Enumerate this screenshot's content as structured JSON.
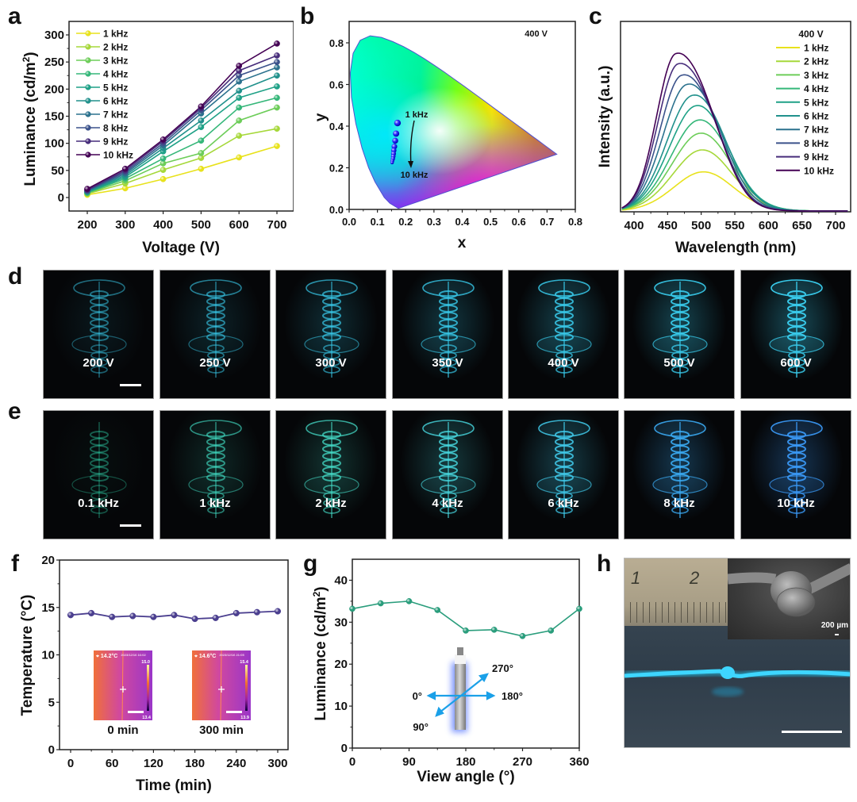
{
  "figure": {
    "panel_labels": [
      "a",
      "b",
      "c",
      "d",
      "e",
      "f",
      "g",
      "h"
    ]
  },
  "chart_data": [
    {
      "id": "a",
      "type": "line",
      "title": "",
      "xlabel": "Voltage (V)",
      "ylabel": "Luminance (cd/m²)",
      "x": [
        200,
        300,
        400,
        500,
        600,
        700
      ],
      "xticks": [
        "200",
        "300",
        "400",
        "500",
        "600",
        "700"
      ],
      "yticks": [
        "0",
        "50",
        "100",
        "150",
        "200",
        "250",
        "300"
      ],
      "xlim": [
        150,
        750
      ],
      "ylim": [
        -25,
        320
      ],
      "legend_position": "top-left",
      "series": [
        {
          "name": "1 kHz",
          "color": "#e8e21c",
          "values": [
            5,
            17,
            34,
            53,
            74,
            95
          ]
        },
        {
          "name": "2 kHz",
          "color": "#a6d83a",
          "values": [
            7,
            26,
            51,
            73,
            114,
            127
          ]
        },
        {
          "name": "3 kHz",
          "color": "#6dcd59",
          "values": [
            8,
            31,
            63,
            82,
            142,
            166
          ]
        },
        {
          "name": "4 kHz",
          "color": "#35b779",
          "values": [
            9,
            35,
            72,
            105,
            166,
            184
          ]
        },
        {
          "name": "5 kHz",
          "color": "#1fa187",
          "values": [
            10,
            38,
            85,
            130,
            184,
            205
          ]
        },
        {
          "name": "6 kHz",
          "color": "#21918c",
          "values": [
            11,
            41,
            91,
            142,
            197,
            225
          ]
        },
        {
          "name": "7 kHz",
          "color": "#2c728e",
          "values": [
            12,
            44,
            96,
            155,
            214,
            240
          ]
        },
        {
          "name": "8 kHz",
          "color": "#3b528b",
          "values": [
            13,
            47,
            100,
            161,
            225,
            250
          ]
        },
        {
          "name": "9 kHz",
          "color": "#472d7b",
          "values": [
            14,
            50,
            104,
            165,
            234,
            262
          ]
        },
        {
          "name": "10 kHz",
          "color": "#440154",
          "values": [
            16,
            53,
            107,
            168,
            243,
            284
          ]
        }
      ]
    },
    {
      "id": "b",
      "type": "scatter",
      "title": "",
      "annotation": "400 V",
      "xlabel": "x",
      "ylabel": "y",
      "xlim": [
        0.0,
        0.8
      ],
      "ylim": [
        0.0,
        0.88
      ],
      "xticks": [
        "0.0",
        "0.1",
        "0.2",
        "0.3",
        "0.4",
        "0.5",
        "0.6",
        "0.7",
        "0.8"
      ],
      "yticks": [
        "0.0",
        "0.2",
        "0.4",
        "0.6",
        "0.8"
      ],
      "arrow_labels": {
        "start": "1 kHz",
        "end": "10 kHz"
      },
      "points": [
        {
          "label": "1 kHz",
          "x": 0.171,
          "y": 0.415
        },
        {
          "label": "2 kHz",
          "x": 0.166,
          "y": 0.364
        },
        {
          "label": "3 kHz",
          "x": 0.163,
          "y": 0.33
        },
        {
          "label": "4 kHz",
          "x": 0.16,
          "y": 0.302
        },
        {
          "label": "5 kHz",
          "x": 0.158,
          "y": 0.284
        },
        {
          "label": "6 kHz",
          "x": 0.157,
          "y": 0.268
        },
        {
          "label": "7 kHz",
          "x": 0.156,
          "y": 0.255
        },
        {
          "label": "8 kHz",
          "x": 0.155,
          "y": 0.244
        },
        {
          "label": "9 kHz",
          "x": 0.153,
          "y": 0.234
        },
        {
          "label": "10 kHz",
          "x": 0.152,
          "y": 0.225
        }
      ]
    },
    {
      "id": "c",
      "type": "line",
      "title": "",
      "annotation": "400 V",
      "xlabel": "Wavelength (nm)",
      "ylabel": "Intensity (a.u.)",
      "xlim": [
        380,
        720
      ],
      "xticks": [
        "400",
        "450",
        "500",
        "550",
        "600",
        "650",
        "700"
      ],
      "legend_position": "top-right",
      "series": [
        {
          "name": "1 kHz",
          "color": "#e8e21c",
          "peak_nm": 500,
          "peak_rel": 0.23
        },
        {
          "name": "2 kHz",
          "color": "#a6d83a",
          "peak_nm": 498,
          "peak_rel": 0.36
        },
        {
          "name": "3 kHz",
          "color": "#6dcd59",
          "peak_nm": 496,
          "peak_rel": 0.46
        },
        {
          "name": "4 kHz",
          "color": "#35b779",
          "peak_nm": 494,
          "peak_rel": 0.54
        },
        {
          "name": "5 kHz",
          "color": "#1fa187",
          "peak_nm": 490,
          "peak_rel": 0.63
        },
        {
          "name": "6 kHz",
          "color": "#21918c",
          "peak_nm": 485,
          "peak_rel": 0.7
        },
        {
          "name": "7 kHz",
          "color": "#2c728e",
          "peak_nm": 477,
          "peak_rel": 0.78
        },
        {
          "name": "8 kHz",
          "color": "#3b528b",
          "peak_nm": 470,
          "peak_rel": 0.85
        },
        {
          "name": "9 kHz",
          "color": "#472d7b",
          "peak_nm": 465,
          "peak_rel": 0.93
        },
        {
          "name": "10 kHz",
          "color": "#440154",
          "peak_nm": 462,
          "peak_rel": 1.0
        }
      ]
    },
    {
      "id": "f",
      "type": "line",
      "title": "",
      "xlabel": "Time (min)",
      "ylabel": "Temperature (°C)",
      "xlim": [
        -10,
        310
      ],
      "ylim": [
        0,
        20
      ],
      "xticks": [
        "0",
        "60",
        "120",
        "180",
        "240",
        "300"
      ],
      "yticks": [
        "0",
        "5",
        "10",
        "15",
        "20"
      ],
      "series": [
        {
          "name": "Temperature",
          "color": "#4b3f8f",
          "x": [
            0,
            30,
            60,
            90,
            120,
            150,
            180,
            210,
            240,
            270,
            300
          ],
          "values": [
            14.2,
            14.4,
            14.0,
            14.1,
            14.0,
            14.2,
            13.8,
            13.9,
            14.4,
            14.5,
            14.6
          ]
        }
      ],
      "insets": [
        {
          "caption": "0 min",
          "readout": "14.2°C",
          "scale_max": "15.0",
          "scale_min": "13.4",
          "stamp": "2023/12/16 16:02"
        },
        {
          "caption": "300 min",
          "readout": "14.6°C",
          "scale_max": "15.4",
          "scale_min": "13.9",
          "stamp": "2023/12/16 21:05"
        }
      ]
    },
    {
      "id": "g",
      "type": "line",
      "title": "",
      "xlabel": "View angle (°)",
      "ylabel": "Luminance (cd/m²)",
      "xlim": [
        0,
        360
      ],
      "ylim": [
        0,
        45
      ],
      "xticks": [
        "0",
        "90",
        "180",
        "270",
        "360"
      ],
      "yticks": [
        "0",
        "10",
        "20",
        "30",
        "40"
      ],
      "series": [
        {
          "name": "Luminance",
          "color": "#2a9d7c",
          "x": [
            0,
            45,
            90,
            135,
            180,
            225,
            270,
            315,
            360
          ],
          "values": [
            33.2,
            34.5,
            35.0,
            32.9,
            28.0,
            28.2,
            26.7,
            28.0,
            33.2
          ]
        }
      ],
      "inset_angles": [
        "0°",
        "90°",
        "180°",
        "270°"
      ]
    }
  ],
  "photos": {
    "d": {
      "labels": [
        "200 V",
        "250 V",
        "300 V",
        "350 V",
        "400 V",
        "500 V",
        "600 V"
      ],
      "glow": [
        0.25,
        0.4,
        0.55,
        0.7,
        0.8,
        0.9,
        1.0
      ],
      "color": "#38c8e8"
    },
    "e": {
      "labels": [
        "0.1 kHz",
        "1 kHz",
        "2 kHz",
        "4 kHz",
        "6 kHz",
        "8 kHz",
        "10 kHz"
      ],
      "glow": [
        0.12,
        0.45,
        0.6,
        0.7,
        0.8,
        0.85,
        0.9
      ],
      "colors": [
        "#2fd0a8",
        "#40d8c0",
        "#45dcc8",
        "#48d8e0",
        "#40c8e8",
        "#3aa8f0",
        "#3a98f5"
      ]
    },
    "h": {
      "sem_scale": "200 µm",
      "ruler_marks": [
        "1",
        "2"
      ]
    }
  }
}
